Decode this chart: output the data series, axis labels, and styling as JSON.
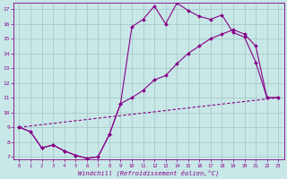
{
  "xlabel": "Windchill (Refroidissement éolien,°C)",
  "xlim": [
    -0.5,
    23.5
  ],
  "ylim": [
    6.8,
    17.4
  ],
  "xticks": [
    0,
    1,
    2,
    3,
    4,
    5,
    6,
    7,
    8,
    9,
    10,
    11,
    12,
    13,
    14,
    15,
    16,
    17,
    18,
    19,
    20,
    21,
    22,
    23
  ],
  "yticks": [
    7,
    8,
    9,
    10,
    11,
    12,
    13,
    14,
    15,
    16,
    17
  ],
  "bg_color": "#c8e8e8",
  "line_color": "#880088",
  "line1_x": [
    0,
    1,
    2,
    3,
    4,
    5,
    6,
    7,
    8,
    9,
    10,
    11,
    12,
    13,
    14,
    15,
    16,
    17,
    18,
    19,
    20,
    21,
    22,
    23
  ],
  "line1_y": [
    9.0,
    8.7,
    7.6,
    7.8,
    7.4,
    7.1,
    6.9,
    7.0,
    8.5,
    10.6,
    15.8,
    16.3,
    17.2,
    16.0,
    17.4,
    16.9,
    16.5,
    16.3,
    16.6,
    15.4,
    15.1,
    13.4,
    11.0,
    11.0
  ],
  "line2_x": [
    0,
    1,
    2,
    3,
    4,
    5,
    6,
    7,
    8,
    9,
    10,
    11,
    12,
    13,
    14,
    15,
    16,
    17,
    18,
    19,
    20,
    21,
    22,
    23
  ],
  "line2_y": [
    9.0,
    8.7,
    7.6,
    7.8,
    7.4,
    7.1,
    6.9,
    7.0,
    8.5,
    10.6,
    11.0,
    11.5,
    12.2,
    12.5,
    13.3,
    14.0,
    14.5,
    15.0,
    15.3,
    15.6,
    15.3,
    14.5,
    11.0,
    11.0
  ],
  "line3_x": [
    0,
    23
  ],
  "line3_y": [
    9.0,
    11.0
  ],
  "marker_size": 2.0,
  "line_width": 0.8
}
